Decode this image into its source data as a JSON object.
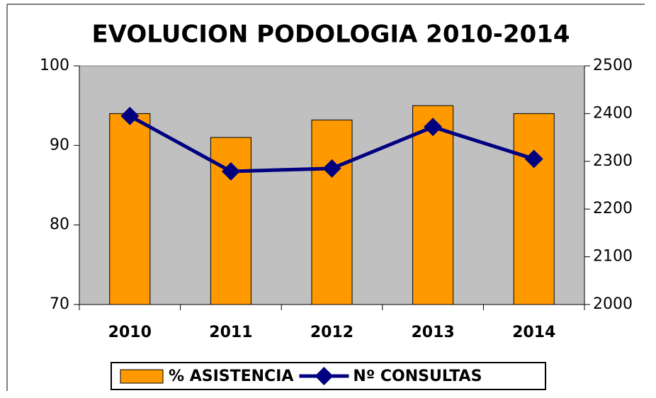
{
  "chart_data": {
    "type": "bar_line",
    "title": "EVOLUCION  PODOLOGIA 2010-2014",
    "categories": [
      "2010",
      "2011",
      "2012",
      "2013",
      "2014"
    ],
    "series": [
      {
        "name": "% ASISTENCIA",
        "type": "bar",
        "color": "#ff9900",
        "values": [
          94,
          91,
          93.2,
          95,
          94
        ]
      },
      {
        "name": "Nº CONSULTAS",
        "type": "line",
        "axis": "y2",
        "color": "#000080",
        "values": [
          2395,
          2279,
          2285,
          2372,
          2305
        ]
      }
    ],
    "ylim": [
      70,
      100
    ],
    "yticks": [
      70,
      80,
      90,
      100
    ],
    "y2lim": [
      2000,
      2500
    ],
    "y2ticks": [
      2000,
      2100,
      2200,
      2300,
      2400,
      2500
    ],
    "legend": "bottom"
  }
}
